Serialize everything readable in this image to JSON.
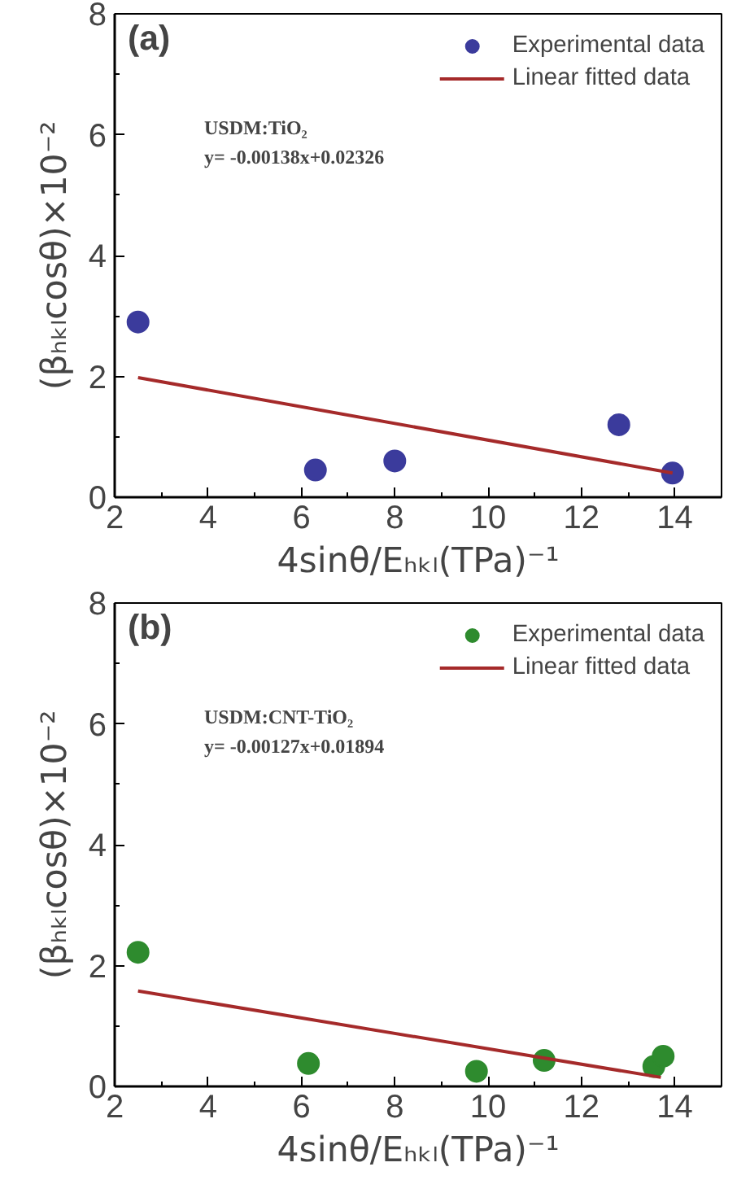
{
  "chart_data": [
    {
      "type": "scatter",
      "xlabel": "4sinθ/Eₕₖₗ(TPa)⁻¹",
      "ylabel": "(βₕₖₗcosθ)×10⁻²",
      "xlim": [
        2,
        15
      ],
      "ylim": [
        0,
        8
      ],
      "xticks": [
        2,
        4,
        6,
        8,
        10,
        12,
        14
      ],
      "yticks": [
        0,
        2,
        4,
        6,
        8
      ],
      "legend": "top right",
      "grid": false,
      "annotations": [
        "(a)",
        "USDM:TiO₂",
        "y= -0.00138x+0.02326"
      ],
      "series": [
        {
          "name": "Experimental data",
          "marker": "circle",
          "color": "#3b3b9c",
          "x": [
            2.5,
            6.3,
            8.0,
            12.8,
            13.95
          ],
          "values": [
            2.9,
            0.45,
            0.6,
            1.2,
            0.4
          ]
        },
        {
          "name": "Linear fitted data",
          "type": "line",
          "marker": "none",
          "color": "#a52a2a",
          "x": [
            2.5,
            13.95
          ],
          "values": [
            1.98,
            0.4
          ]
        }
      ]
    },
    {
      "type": "scatter",
      "xlabel": "4sinθ/Eₕₖₗ(TPa)⁻¹",
      "ylabel": "(βₕₖₗcosθ)×10⁻²",
      "xlim": [
        2,
        15
      ],
      "ylim": [
        0,
        8
      ],
      "xticks": [
        2,
        4,
        6,
        8,
        10,
        12,
        14
      ],
      "yticks": [
        0,
        2,
        4,
        6,
        8
      ],
      "legend": "top right",
      "grid": false,
      "annotations": [
        "(b)",
        "USDM:CNT-TiO₂",
        "y= -0.00127x+0.01894"
      ],
      "series": [
        {
          "name": "Experimental data",
          "marker": "circle",
          "color": "#2e8b2e",
          "x": [
            2.5,
            6.15,
            9.75,
            11.2,
            13.55,
            13.75
          ],
          "values": [
            2.22,
            0.38,
            0.25,
            0.43,
            0.33,
            0.5
          ]
        },
        {
          "name": "Linear fitted data",
          "type": "line",
          "marker": "none",
          "color": "#a52a2a",
          "x": [
            2.5,
            13.7
          ],
          "values": [
            1.58,
            0.15
          ]
        }
      ]
    }
  ]
}
